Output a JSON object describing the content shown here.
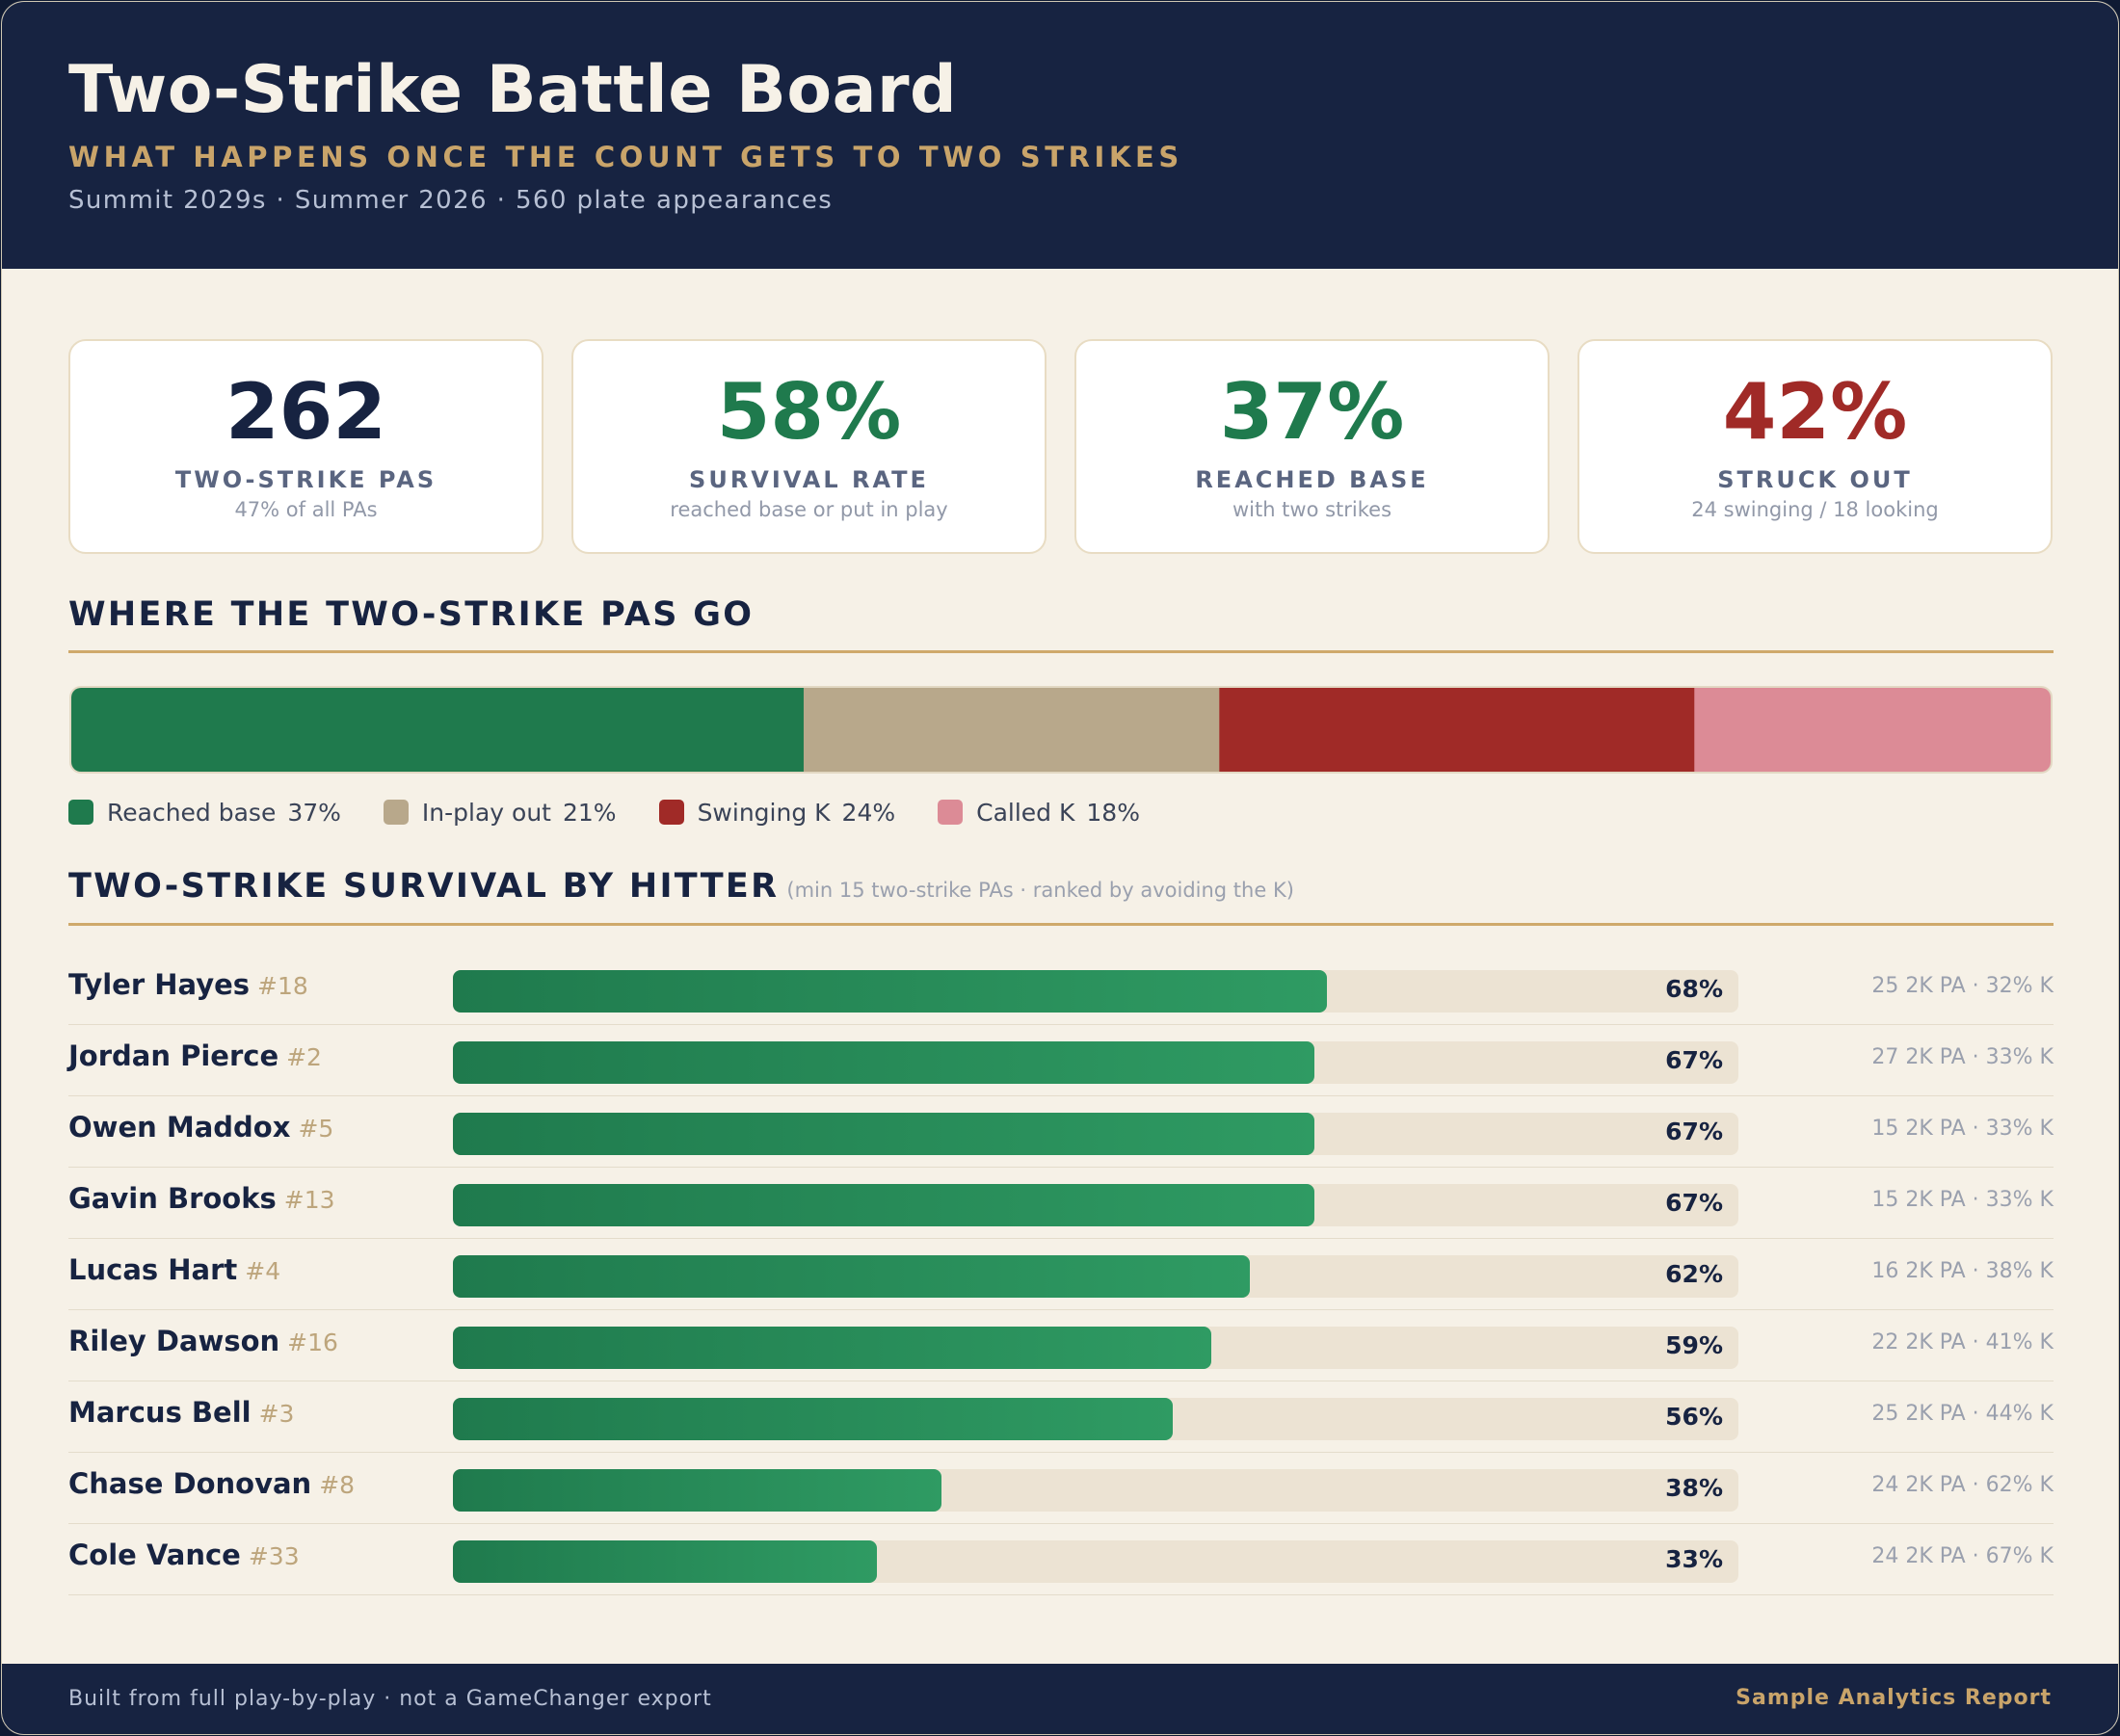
{
  "header": {
    "title": "Two-Strike Battle Board",
    "subtitle": "WHAT HAPPENS ONCE THE COUNT GETS TO TWO STRIKES",
    "meta": "Summit 2029s · Summer 2026 · 560 plate appearances"
  },
  "kpis": [
    {
      "value": "262",
      "label": "TWO-STRIKE PAS",
      "sub": "47% of all PAs",
      "color": "#172341"
    },
    {
      "value": "58%",
      "label": "SURVIVAL RATE",
      "sub": "reached base or put in play",
      "color": "#1f7a4d"
    },
    {
      "value": "37%",
      "label": "REACHED BASE",
      "sub": "with two strikes",
      "color": "#1f7a4d"
    },
    {
      "value": "42%",
      "label": "STRUCK OUT",
      "sub": "24 swinging / 18 looking",
      "color": "#a02a27"
    }
  ],
  "distribution": {
    "title": "WHERE THE TWO-STRIKE PAS GO"
  },
  "hitters": {
    "title": "TWO-STRIKE SURVIVAL BY HITTER",
    "note": "(min 15 two-strike PAs · ranked by avoiding the K)"
  },
  "chart_data": [
    {
      "type": "bar",
      "orientation": "stacked-horizontal",
      "title": "WHERE THE TWO-STRIKE PAS GO",
      "categories": [
        "Reached base",
        "In-play out",
        "Swinging K",
        "Called K"
      ],
      "values": [
        37,
        21,
        24,
        18
      ],
      "value_labels": [
        "37%",
        "21%",
        "24%",
        "18%"
      ],
      "colors": [
        "#1f7a4d",
        "#b8a88b",
        "#a02a27",
        "#dc8b96"
      ],
      "legend": "bottom-left"
    },
    {
      "type": "bar",
      "orientation": "horizontal",
      "title": "TWO-STRIKE SURVIVAL BY HITTER",
      "subtitle": "(min 15 two-strike PAs · ranked by avoiding the K)",
      "xlim": [
        0,
        100
      ],
      "rows": [
        {
          "name": "Tyler Hayes",
          "number": "#18",
          "value": 68,
          "label": "68%",
          "stat": "25 2K PA · 32% K"
        },
        {
          "name": "Jordan Pierce",
          "number": "#2",
          "value": 67,
          "label": "67%",
          "stat": "27 2K PA · 33% K"
        },
        {
          "name": "Owen Maddox",
          "number": "#5",
          "value": 67,
          "label": "67%",
          "stat": "15 2K PA · 33% K"
        },
        {
          "name": "Gavin Brooks",
          "number": "#13",
          "value": 67,
          "label": "67%",
          "stat": "15 2K PA · 33% K"
        },
        {
          "name": "Lucas Hart",
          "number": "#4",
          "value": 62,
          "label": "62%",
          "stat": "16 2K PA · 38% K"
        },
        {
          "name": "Riley Dawson",
          "number": "#16",
          "value": 59,
          "label": "59%",
          "stat": "22 2K PA · 41% K"
        },
        {
          "name": "Marcus Bell",
          "number": "#3",
          "value": 56,
          "label": "56%",
          "stat": "25 2K PA · 44% K"
        },
        {
          "name": "Chase Donovan",
          "number": "#8",
          "value": 38,
          "label": "38%",
          "stat": "24 2K PA · 62% K"
        },
        {
          "name": "Cole Vance",
          "number": "#33",
          "value": 33,
          "label": "33%",
          "stat": "24 2K PA · 67% K"
        }
      ],
      "bar_color": "#1f7a4d"
    }
  ],
  "footer": {
    "left": "Built from full play-by-play · not a GameChanger export",
    "right": "Sample Analytics Report"
  }
}
